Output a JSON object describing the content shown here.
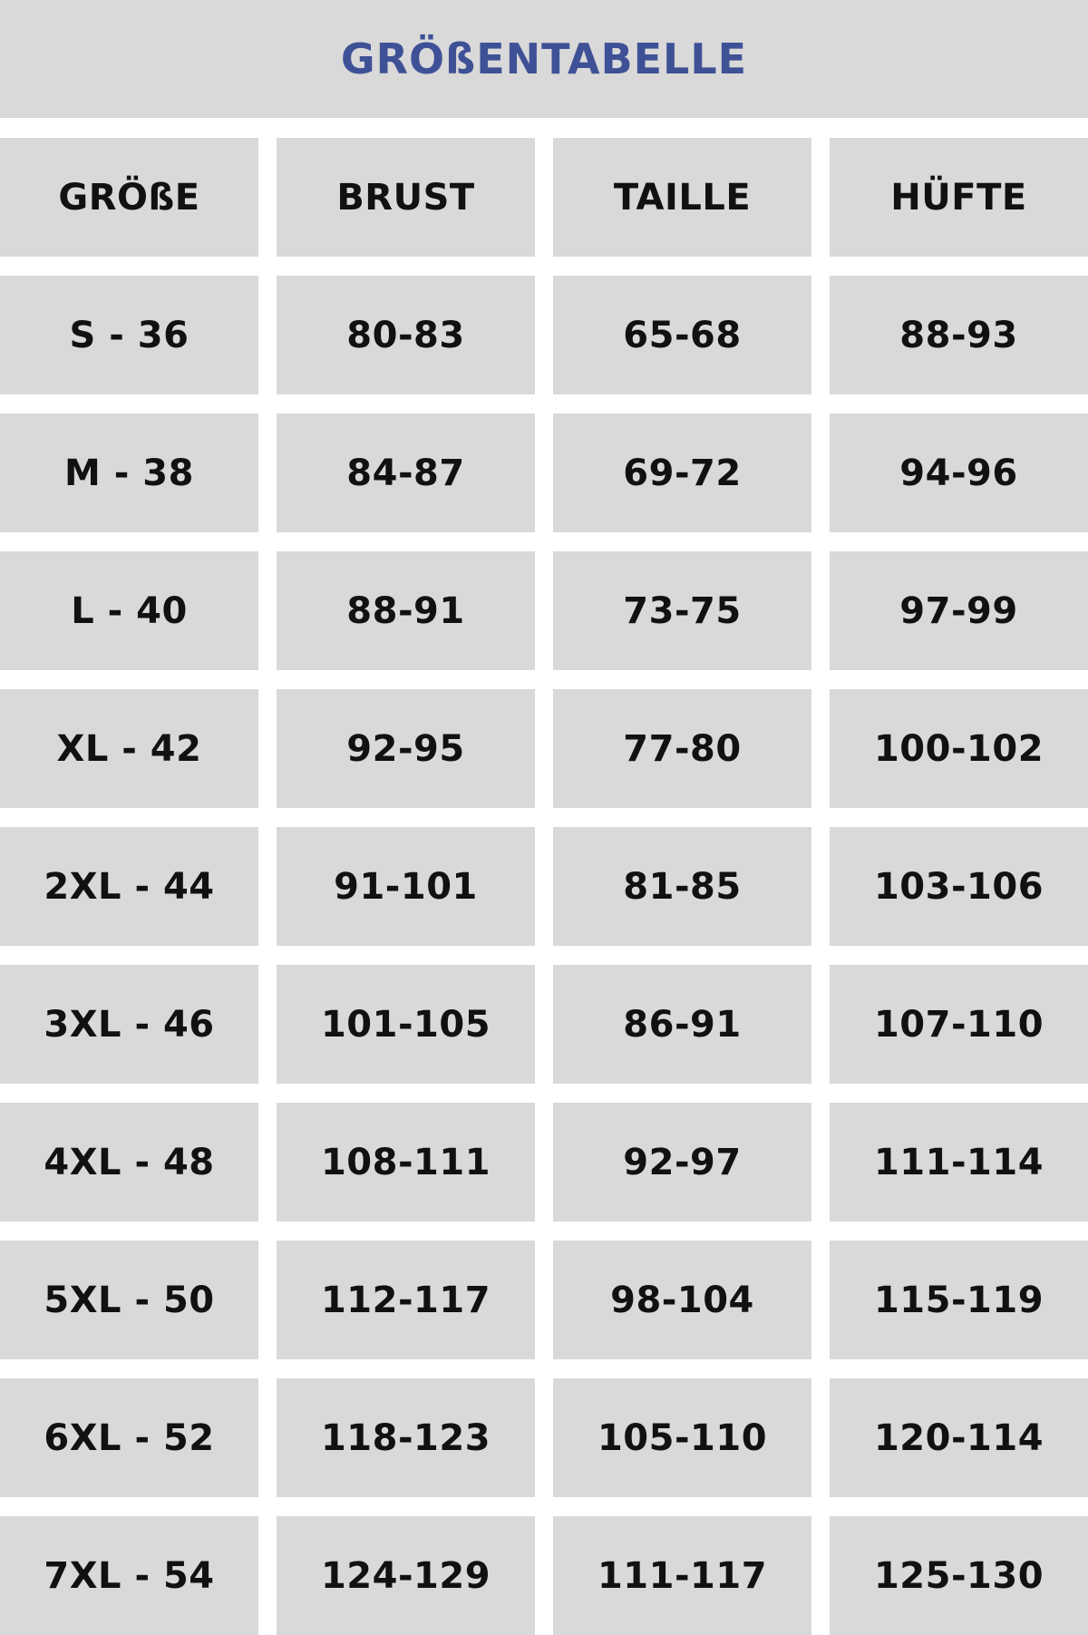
{
  "title": "GRÖßENTABELLE",
  "colors": {
    "title": "#3f5196",
    "cell_background": "#d9d9d9",
    "text": "#111111"
  },
  "headers": [
    "GRÖßE",
    "BRUST",
    "TAILLE",
    "HÜFTE"
  ],
  "rows": [
    [
      "S - 36",
      "80-83",
      "65-68",
      "88-93"
    ],
    [
      "M - 38",
      "84-87",
      "69-72",
      "94-96"
    ],
    [
      "L - 40",
      "88-91",
      "73-75",
      "97-99"
    ],
    [
      "XL - 42",
      "92-95",
      "77-80",
      "100-102"
    ],
    [
      "2XL - 44",
      "91-101",
      "81-85",
      "103-106"
    ],
    [
      "3XL - 46",
      "101-105",
      "86-91",
      "107-110"
    ],
    [
      "4XL - 48",
      "108-111",
      "92-97",
      "111-114"
    ],
    [
      "5XL - 50",
      "112-117",
      "98-104",
      "115-119"
    ],
    [
      "6XL - 52",
      "118-123",
      "105-110",
      "120-114"
    ],
    [
      "7XL - 54",
      "124-129",
      "111-117",
      "125-130"
    ]
  ]
}
